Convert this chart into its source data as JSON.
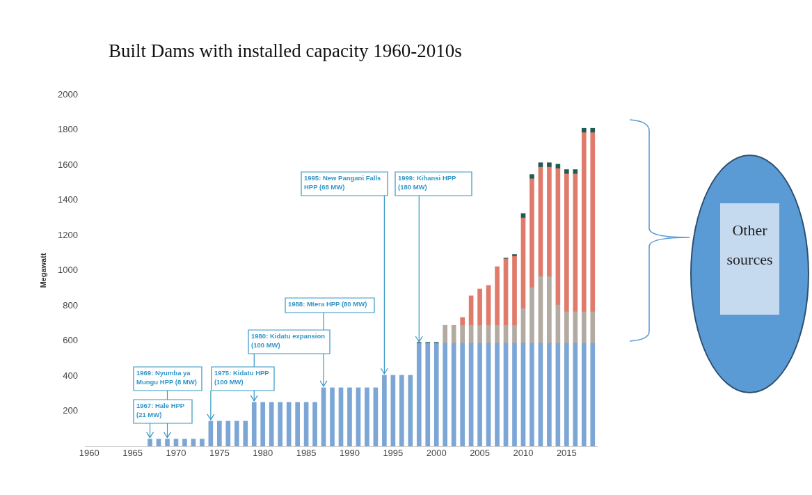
{
  "chart_data": {
    "type": "bar",
    "title": "Built Dams with installed capacity 1960-2010s",
    "ylabel": "Megawatt",
    "x": [
      1967,
      1968,
      1969,
      1970,
      1971,
      1972,
      1973,
      1974,
      1975,
      1976,
      1977,
      1978,
      1979,
      1980,
      1981,
      1982,
      1983,
      1984,
      1985,
      1986,
      1987,
      1988,
      1989,
      1990,
      1991,
      1992,
      1993,
      1994,
      1995,
      1996,
      1997,
      1998,
      1999,
      2000,
      2001,
      2002,
      2003,
      2004,
      2005,
      2006,
      2007,
      2008,
      2009,
      2010,
      2011,
      2012,
      2013,
      2014,
      2015,
      2016,
      2017,
      2018
    ],
    "xlim": [
      1959.5,
      2018.5
    ],
    "xticks": [
      1960,
      1965,
      1970,
      1975,
      1980,
      1985,
      1990,
      1995,
      2000,
      2005,
      2010,
      2015
    ],
    "ylim": [
      0,
      2000
    ],
    "yticks": [
      200,
      400,
      600,
      800,
      1000,
      1200,
      1400,
      1600,
      1800,
      2000
    ],
    "stacked": true,
    "grid": false,
    "legend": false,
    "series": [
      {
        "color": "#7ba6d6",
        "values": [
          41,
          41,
          41,
          41,
          41,
          41,
          41,
          143,
          143,
          143,
          143,
          143,
          250,
          250,
          250,
          250,
          250,
          250,
          250,
          250,
          333,
          333,
          333,
          333,
          333,
          333,
          333,
          404,
          404,
          404,
          404,
          586,
          586,
          586,
          586,
          586,
          586,
          586,
          586,
          586,
          586,
          586,
          586,
          586,
          586,
          586,
          586,
          586,
          586,
          586,
          586,
          586
        ]
      },
      {
        "color": "#b3aba1",
        "values": [
          null,
          null,
          null,
          null,
          null,
          null,
          null,
          null,
          null,
          null,
          null,
          null,
          null,
          null,
          null,
          null,
          null,
          null,
          null,
          null,
          null,
          null,
          null,
          null,
          null,
          null,
          null,
          null,
          null,
          null,
          null,
          null,
          null,
          null,
          102,
          102,
          102,
          102,
          102,
          102,
          102,
          102,
          102,
          198,
          316,
          380,
          380,
          218,
          179,
          179,
          179,
          179
        ]
      },
      {
        "color": "#e07a6a",
        "values": [
          null,
          null,
          null,
          null,
          null,
          null,
          null,
          null,
          null,
          null,
          null,
          null,
          null,
          null,
          null,
          null,
          null,
          null,
          null,
          null,
          null,
          null,
          null,
          null,
          null,
          null,
          null,
          null,
          null,
          null,
          null,
          null,
          null,
          null,
          null,
          null,
          45,
          168,
          207,
          227,
          334,
          378,
          393,
          515,
          619,
          622,
          622,
          776,
          784,
          784,
          1019,
          1019
        ]
      },
      {
        "color": "#1f5a55",
        "values": [
          null,
          null,
          null,
          null,
          null,
          null,
          null,
          null,
          null,
          null,
          null,
          null,
          null,
          null,
          null,
          null,
          null,
          null,
          null,
          null,
          null,
          null,
          null,
          null,
          null,
          null,
          null,
          null,
          null,
          null,
          null,
          5,
          5,
          5,
          null,
          null,
          null,
          null,
          null,
          null,
          null,
          5,
          10,
          25,
          25,
          25,
          25,
          25,
          25,
          25,
          25,
          25
        ]
      }
    ],
    "annotations": [
      {
        "text": "1967: Hale HPP (21 MW)",
        "x": 1967,
        "y": 41
      },
      {
        "text": "1969: Nyumba ya Mungu HPP (8 MW)",
        "x": 1969,
        "y": 41
      },
      {
        "text": "1975: Kidatu HPP (100 MW)",
        "x": 1974,
        "y": 143
      },
      {
        "text": "1980: Kidatu expansion (100 MW)",
        "x": 1979,
        "y": 250
      },
      {
        "text": "1988: Mtera HPP (80 MW)",
        "x": 1987,
        "y": 333
      },
      {
        "text": "1995: New Pangani Falls HPP (68 MW)",
        "x": 1994,
        "y": 404
      },
      {
        "text": "1999: Kihansi HPP (180 MW)",
        "x": 1998,
        "y": 586
      },
      "Other sources"
    ]
  }
}
